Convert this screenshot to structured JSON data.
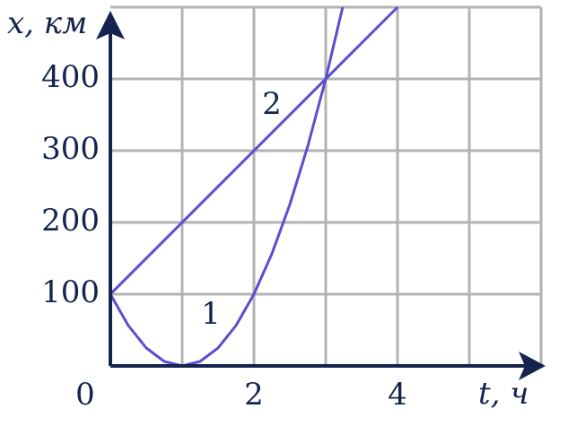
{
  "chart_data": {
    "type": "line",
    "xlabel": "t, ч",
    "ylabel": "x, км",
    "xlim": [
      0,
      6
    ],
    "ylim": [
      0,
      500
    ],
    "xticks": [
      0,
      2,
      4
    ],
    "yticks": [
      100,
      200,
      300,
      400
    ],
    "xgrid": [
      1,
      2,
      3,
      4,
      5,
      6
    ],
    "ygrid": [
      100,
      200,
      300,
      400,
      500
    ],
    "grid": true,
    "series": [
      {
        "name": "1",
        "color": "#5a4fcf",
        "x": [
          0,
          0.25,
          0.5,
          0.75,
          1,
          1.25,
          1.5,
          1.75,
          2,
          2.25,
          2.5,
          2.75,
          3,
          3.236
        ],
        "values": [
          100,
          56.25,
          25,
          6.25,
          0,
          6.25,
          25,
          56.25,
          100,
          156.25,
          225,
          306.25,
          400,
          500
        ]
      },
      {
        "name": "2",
        "color": "#5a4fcf",
        "x": [
          0,
          4
        ],
        "values": [
          100,
          500
        ]
      }
    ]
  }
}
